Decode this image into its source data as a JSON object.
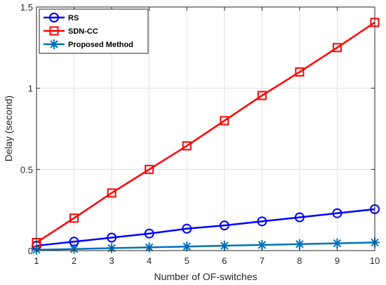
{
  "chart_data": {
    "type": "line",
    "title": "",
    "xlabel": "Number of OF-switches",
    "ylabel": "Delay (second)",
    "x": [
      1,
      2,
      3,
      4,
      5,
      6,
      7,
      8,
      9,
      10
    ],
    "xlim": [
      1,
      10
    ],
    "ylim": [
      0,
      1.5
    ],
    "xticks": [
      "1",
      "2",
      "3",
      "4",
      "5",
      "6",
      "7",
      "8",
      "9",
      "10"
    ],
    "yticks": [
      {
        "value": 0,
        "label": "0"
      },
      {
        "value": 0.5,
        "label": "0.5"
      },
      {
        "value": 1,
        "label": "1"
      },
      {
        "value": 1.5,
        "label": "1.5"
      }
    ],
    "grid": true,
    "legend_position": "top-left",
    "series": [
      {
        "name": "RS",
        "color": "#0000FF",
        "marker": "circle",
        "values": [
          0.03,
          0.055,
          0.08,
          0.105,
          0.135,
          0.155,
          0.18,
          0.205,
          0.23,
          0.255
        ]
      },
      {
        "name": "SDN-CC",
        "color": "#FF0000",
        "marker": "square",
        "values": [
          0.05,
          0.2,
          0.355,
          0.5,
          0.645,
          0.8,
          0.955,
          1.1,
          1.25,
          1.405
        ]
      },
      {
        "name": "Proposed Method",
        "color": "#0072BD",
        "marker": "asterisk",
        "values": [
          0.005,
          0.01,
          0.015,
          0.02,
          0.025,
          0.03,
          0.035,
          0.04,
          0.045,
          0.05
        ]
      }
    ]
  }
}
